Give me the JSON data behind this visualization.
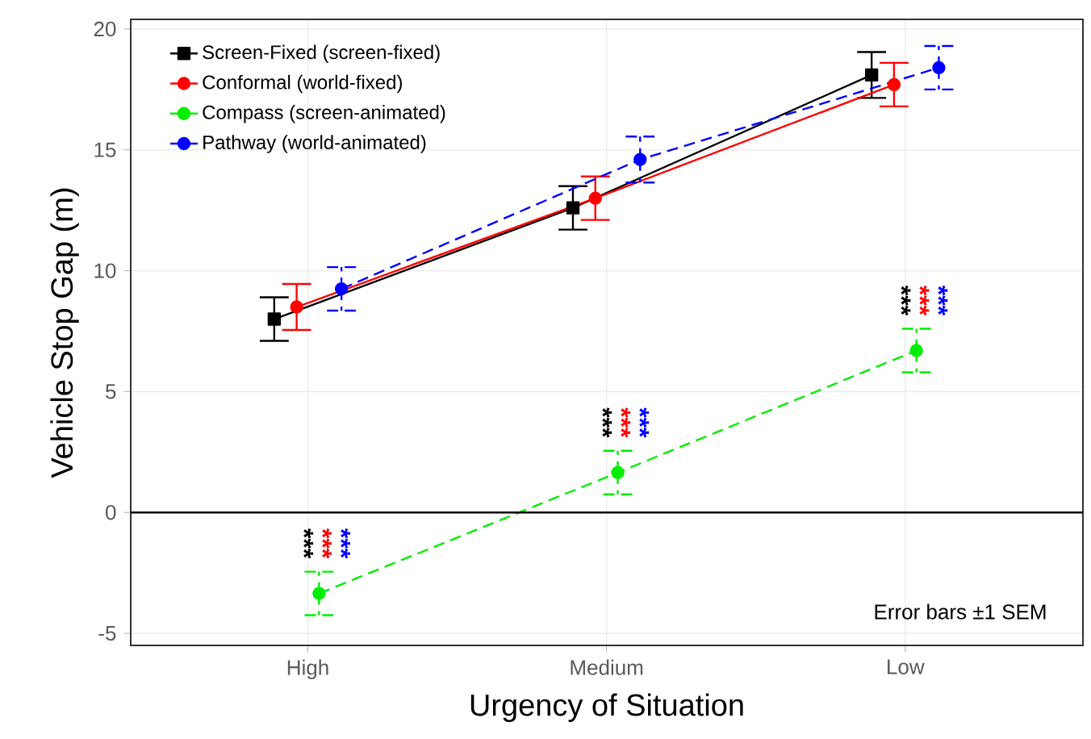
{
  "chart_data": {
    "type": "line",
    "xlabel": "Urgency of Situation",
    "ylabel": "Vehicle Stop Gap (m)",
    "categories": [
      "High",
      "Medium",
      "Low"
    ],
    "series": [
      {
        "name": "Screen-Fixed (screen-fixed)",
        "color": "#000000",
        "marker": "square",
        "line_style": "solid",
        "values": [
          8.0,
          12.6,
          18.1
        ],
        "errors": [
          0.9,
          0.9,
          0.95
        ]
      },
      {
        "name": "Conformal (world-fixed)",
        "color": "#ff0000",
        "marker": "circle",
        "line_style": "solid",
        "values": [
          8.5,
          13.0,
          17.7
        ],
        "errors": [
          0.95,
          0.9,
          0.9
        ]
      },
      {
        "name": "Compass (screen-animated)",
        "color": "#00ee00",
        "marker": "circle",
        "line_style": "dashed",
        "values": [
          -3.35,
          1.65,
          6.7
        ],
        "errors": [
          0.9,
          0.9,
          0.9
        ]
      },
      {
        "name": "Pathway (world-animated)",
        "color": "#0000ff",
        "marker": "circle",
        "line_style": "dashed",
        "values": [
          9.25,
          14.6,
          18.4
        ],
        "errors": [
          0.9,
          0.95,
          0.9
        ]
      }
    ],
    "ylim": [
      -5.5,
      20.4
    ],
    "yticks": [
      -5,
      0,
      5,
      10,
      15,
      20
    ],
    "grid": true,
    "legend": "top left",
    "ref_lines": [
      {
        "axis": "y",
        "value": 0,
        "color": "#000000"
      }
    ],
    "annotations": [
      "***",
      "***",
      "***",
      "***",
      "***",
      "***",
      "***",
      "***",
      "***",
      "Error bars ±1 SEM"
    ]
  }
}
